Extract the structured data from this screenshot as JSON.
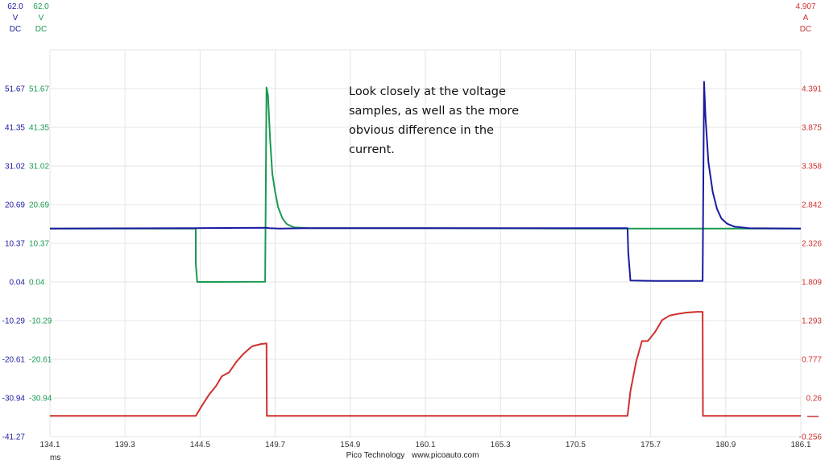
{
  "chart_data": {
    "type": "line",
    "x_unit_label": "ms",
    "xlim": [
      134.1,
      186.1
    ],
    "x_ticks": [
      "134.1",
      "139.3",
      "144.5",
      "149.7",
      "154.9",
      "160.1",
      "165.3",
      "170.5",
      "175.7",
      "180.9",
      "186.1"
    ],
    "axes": [
      {
        "id": "A",
        "color": "#1a1aa0",
        "header": [
          "62.0",
          "V",
          "DC"
        ],
        "ylim": [
          -41.27,
          62.0
        ],
        "ticks": [
          "51.67",
          "41.35",
          "31.02",
          "20.69",
          "10.37",
          "0.04",
          "-10.29",
          "-20.61",
          "-30.94",
          "-41.27"
        ]
      },
      {
        "id": "B",
        "color": "#1a9a50",
        "header": [
          "62.0",
          "V",
          "DC"
        ],
        "ylim": [
          -41.27,
          62.0
        ],
        "ticks": [
          "51.67",
          "41.35",
          "31.02",
          "20.69",
          "10.37",
          "0.04",
          "-10.29",
          "-20.61",
          "-30.94"
        ]
      },
      {
        "id": "C",
        "color": "#d03030",
        "header": [
          "4.907",
          "A",
          "DC"
        ],
        "ylim": [
          -0.256,
          4.907
        ],
        "ticks": [
          "4.391",
          "3.875",
          "3.358",
          "2.842",
          "2.326",
          "1.809",
          "1.293",
          "0.777",
          "0.26",
          "-0.256"
        ]
      }
    ],
    "series": [
      {
        "axis": "B",
        "color": "#1a9a50",
        "x": [
          134.1,
          144.2,
          144.2,
          144.3,
          149.0,
          149.1,
          149.2,
          149.35,
          149.5,
          149.7,
          149.9,
          150.0,
          150.2,
          150.5,
          151.0,
          152.0,
          160.0,
          170.0,
          173.0,
          175.0,
          178.0,
          180.0,
          186.1
        ],
        "y": [
          14.3,
          14.3,
          5.0,
          0.04,
          0.1,
          52.0,
          50.0,
          38.0,
          29.0,
          24.0,
          20.0,
          19.0,
          17.0,
          15.5,
          14.6,
          14.4,
          14.4,
          14.3,
          14.3,
          14.3,
          14.3,
          14.3,
          14.3
        ]
      },
      {
        "axis": "A",
        "color": "#1a1aa0",
        "x": [
          134.1,
          144.2,
          149.1,
          149.3,
          150.0,
          152.0,
          160.0,
          170.0,
          174.1,
          174.15,
          174.3,
          176.0,
          179.3,
          179.4,
          179.5,
          179.7,
          180.0,
          180.3,
          180.6,
          181.0,
          181.5,
          182.5,
          186.1
        ],
        "y": [
          14.3,
          14.4,
          14.5,
          14.4,
          14.3,
          14.4,
          14.4,
          14.4,
          14.4,
          8.0,
          0.4,
          0.3,
          0.3,
          53.5,
          44.0,
          32.0,
          24.0,
          19.5,
          17.0,
          15.6,
          14.8,
          14.4,
          14.3
        ]
      },
      {
        "axis": "C",
        "color": "#d03030",
        "x": [
          134.1,
          144.2,
          144.6,
          145.1,
          145.6,
          146.0,
          146.5,
          147.0,
          147.5,
          148.1,
          148.7,
          149.1,
          149.12,
          149.3,
          160.0,
          174.1,
          174.3,
          174.7,
          175.1,
          175.5,
          176.0,
          176.5,
          177.0,
          177.5,
          178.2,
          178.9,
          179.3,
          179.32,
          179.5,
          186.1
        ],
        "y": [
          0.02,
          0.02,
          0.15,
          0.3,
          0.42,
          0.55,
          0.6,
          0.74,
          0.85,
          0.95,
          0.98,
          0.99,
          0.02,
          0.02,
          0.02,
          0.02,
          0.35,
          0.75,
          1.02,
          1.02,
          1.14,
          1.3,
          1.36,
          1.38,
          1.4,
          1.41,
          1.41,
          0.02,
          0.02,
          0.02
        ]
      }
    ],
    "annotation": [
      "Look closely at the voltage",
      "samples, as well as the more",
      "obvious difference in the",
      "current."
    ],
    "footer": {
      "brand": "Pico Technology",
      "site": "www.picoauto.com"
    }
  }
}
